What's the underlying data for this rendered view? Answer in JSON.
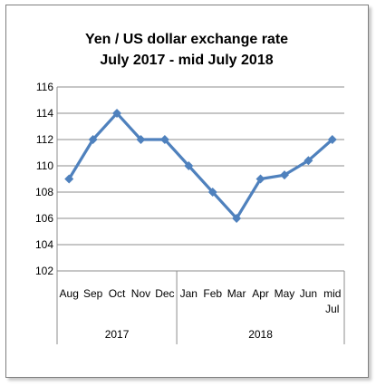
{
  "chart_data": {
    "type": "line",
    "title": "Yen / US dollar exchange rate",
    "subtitle": "July 2017 - mid July 2018",
    "categories": [
      "Aug",
      "Sep",
      "Oct",
      "Nov",
      "Dec",
      "Jan",
      "Feb",
      "Mar",
      "Apr",
      "May",
      "Jun",
      "mid Jul"
    ],
    "category_lines": [
      [
        "Aug"
      ],
      [
        "Sep"
      ],
      [
        "Oct"
      ],
      [
        "Nov"
      ],
      [
        "Dec"
      ],
      [
        "Jan"
      ],
      [
        "Feb"
      ],
      [
        "Mar"
      ],
      [
        "Apr"
      ],
      [
        "May"
      ],
      [
        "Jun"
      ],
      [
        "mid",
        "Jul"
      ]
    ],
    "groups": [
      {
        "label": "2017",
        "span": 5
      },
      {
        "label": "2018",
        "span": 7
      }
    ],
    "series": [
      {
        "values": [
          109,
          112,
          114,
          112,
          112,
          110,
          108,
          106,
          109,
          109.3,
          110.4,
          112
        ],
        "color": "#4f81bd"
      }
    ],
    "ylim": [
      102,
      116
    ],
    "yticks": [
      102,
      104,
      106,
      108,
      110,
      112,
      114,
      116
    ],
    "grid": true,
    "legend": "none"
  }
}
